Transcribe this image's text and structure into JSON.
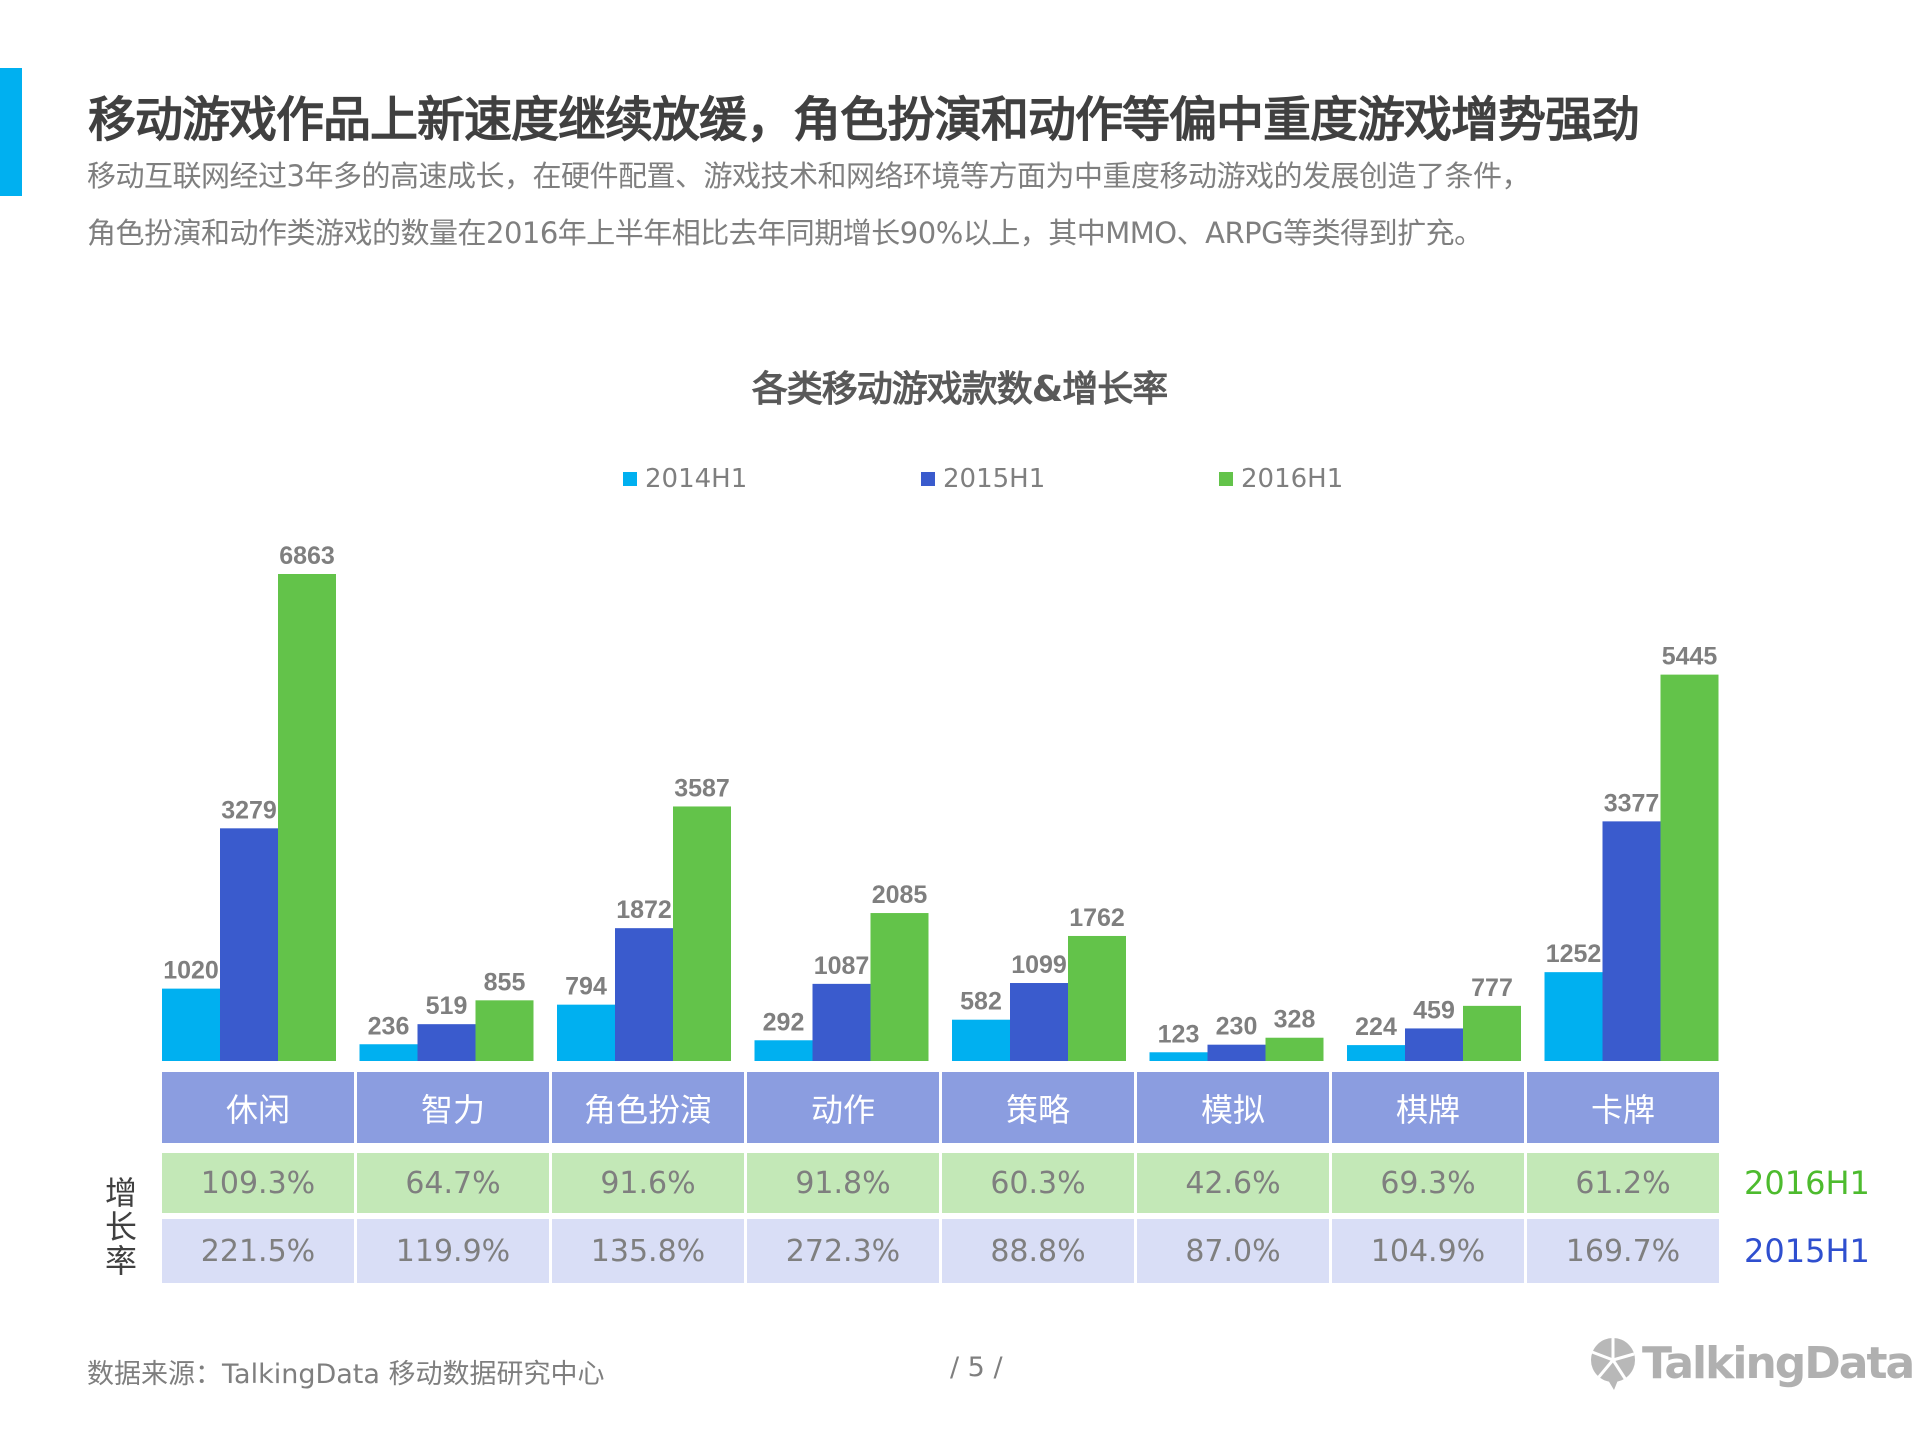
{
  "header": {
    "title": "移动游戏作品上新速度继续放缓，角色扮演和动作等偏中重度游戏增势强劲",
    "subtitle_line1": "移动互联网经过3年多的高速成长，在硬件配置、游戏技术和网络环境等方面为中重度移动游戏的发展创造了条件，",
    "subtitle_line2": "角色扮演和动作类游戏的数量在2016年上半年相比去年同期增长90%以上，其中MMO、ARPG等类得到扩充。"
  },
  "chart_data": {
    "type": "bar",
    "title": "各类移动游戏款数&增长率",
    "categories": [
      "休闲",
      "智力",
      "角色扮演",
      "动作",
      "策略",
      "模拟",
      "棋牌",
      "卡牌"
    ],
    "series": [
      {
        "name": "2014H1",
        "color": "#00b0f0",
        "values": [
          1020,
          236,
          794,
          292,
          582,
          123,
          224,
          1252
        ]
      },
      {
        "name": "2015H1",
        "color": "#3a5bcd",
        "values": [
          3279,
          519,
          1872,
          1087,
          1099,
          230,
          459,
          3377
        ]
      },
      {
        "name": "2016H1",
        "color": "#63c34a",
        "values": [
          6863,
          855,
          3587,
          2085,
          1762,
          328,
          777,
          5445
        ]
      }
    ],
    "legend_position": "top",
    "grid": false,
    "growth_table": {
      "label": "增长率",
      "rows": [
        {
          "name": "2016H1",
          "color": "#4dbb2e",
          "values": [
            "109.3%",
            "64.7%",
            "91.6%",
            "91.8%",
            "60.3%",
            "42.6%",
            "69.3%",
            "61.2%"
          ]
        },
        {
          "name": "2015H1",
          "color": "#2f4fcf",
          "values": [
            "221.5%",
            "119.9%",
            "135.8%",
            "272.3%",
            "88.8%",
            "87.0%",
            "104.9%",
            "169.7%"
          ]
        }
      ]
    }
  },
  "footer": {
    "source": "数据来源：TalkingData  移动数据研究中心",
    "page": "/  5  /",
    "logo": "TalkingData"
  }
}
